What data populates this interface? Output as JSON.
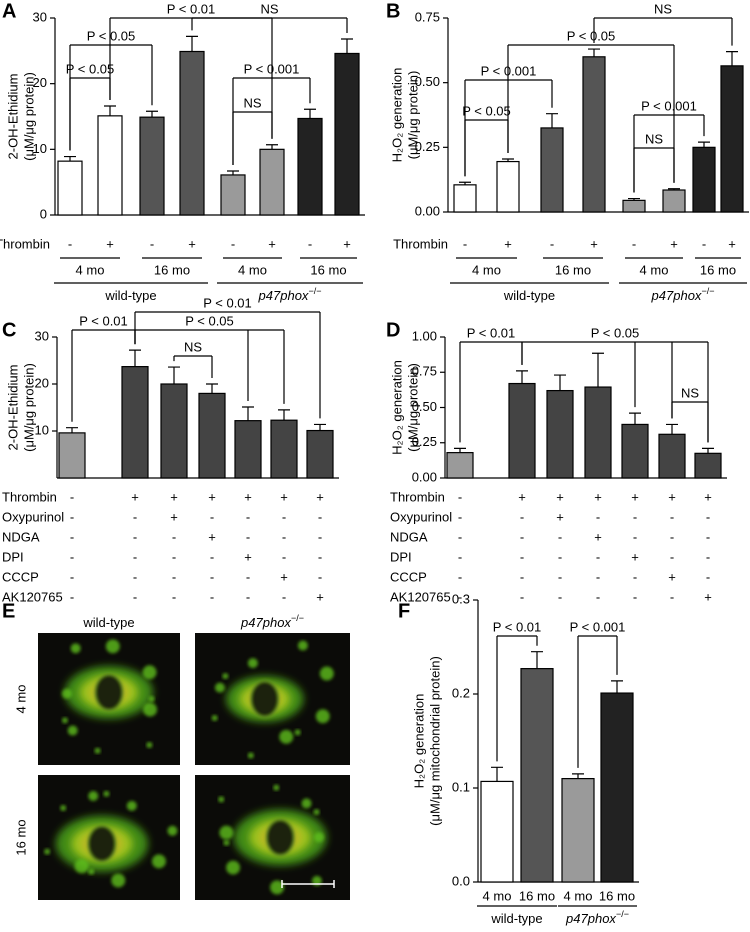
{
  "chart_data": [
    {
      "label": "A",
      "type": "bar",
      "ylabel": [
        "2-OH-Ethidium",
        "(μM/μg protein)"
      ],
      "ylim": [
        0,
        30
      ],
      "yticks": [
        0,
        10,
        20,
        30
      ],
      "values": [
        8.2,
        15.1,
        14.9,
        24.9,
        6.1,
        10.0,
        14.7,
        24.6
      ],
      "errors": [
        0.7,
        1.5,
        0.9,
        2.3,
        0.6,
        0.7,
        1.4,
        2.2
      ],
      "colors": [
        "#ffffff",
        "#ffffff",
        "#555555",
        "#555555",
        "#9a9a9a",
        "#9a9a9a",
        "#222222",
        "#222222"
      ],
      "rows": [
        {
          "name": "Thrombin",
          "values": [
            "-",
            "+",
            "-",
            "+",
            "-",
            "+",
            "-",
            "+"
          ]
        }
      ],
      "groups": [
        "4 mo",
        "16 mo",
        "4 mo",
        "16 mo"
      ],
      "genotypes": [
        {
          "name": "wild-type"
        },
        {
          "name": "p47phox",
          "superscript": "−/−"
        }
      ],
      "annotations": [
        "P < 0.05",
        "P < 0.05",
        "P < 0.01",
        "NS",
        "P < 0.001",
        "NS"
      ]
    },
    {
      "label": "B",
      "type": "bar",
      "ylabel": [
        "H₂O₂ generation",
        "(μM/μg protein)"
      ],
      "ylim": [
        0,
        0.75
      ],
      "yticks": [
        {
          "value": 0,
          "label": "0.00"
        },
        {
          "value": 0.25,
          "label": "0.25"
        },
        {
          "value": 0.5,
          "label": "0.50"
        },
        {
          "value": 0.75,
          "label": "0.75"
        }
      ],
      "values": [
        0.105,
        0.195,
        0.325,
        0.6,
        0.045,
        0.085,
        0.25,
        0.565
      ],
      "errors": [
        0.01,
        0.01,
        0.055,
        0.03,
        0.007,
        0.005,
        0.02,
        0.055
      ],
      "colors": [
        "#ffffff",
        "#ffffff",
        "#555555",
        "#555555",
        "#9a9a9a",
        "#9a9a9a",
        "#222222",
        "#222222"
      ],
      "rows": [
        {
          "name": "Thrombin",
          "values": [
            "-",
            "+",
            "-",
            "+",
            "-",
            "+",
            "-",
            "+"
          ]
        }
      ],
      "groups": [
        "4 mo",
        "16 mo",
        "4 mo",
        "16 mo"
      ],
      "genotypes": [
        {
          "name": "wild-type"
        },
        {
          "name": "p47phox",
          "superscript": "−/−"
        }
      ],
      "annotations": [
        "P < 0.05",
        "P < 0.001",
        "P < 0.05",
        "NS",
        "P < 0.001",
        "NS"
      ]
    },
    {
      "label": "C",
      "type": "bar",
      "ylabel": [
        "2-OH-Ethidium",
        "(μM/μg protein)"
      ],
      "ylim": [
        0,
        30
      ],
      "yticks": [
        10,
        20,
        30
      ],
      "values": [
        9.6,
        23.7,
        20.0,
        18.0,
        12.2,
        12.3,
        10.1
      ],
      "errors": [
        1.1,
        3.5,
        3.6,
        2.0,
        2.9,
        2.2,
        1.3
      ],
      "colors": [
        "#9a9a9a",
        "#444444",
        "#444444",
        "#444444",
        "#444444",
        "#444444",
        "#444444"
      ],
      "rows": [
        {
          "name": "Thrombin",
          "values": [
            "-",
            "+",
            "+",
            "+",
            "+",
            "+",
            "+"
          ]
        },
        {
          "name": "Oxypurinol",
          "values": [
            "-",
            "-",
            "+",
            "-",
            "-",
            "-",
            "-"
          ]
        },
        {
          "name": "NDGA",
          "values": [
            "-",
            "-",
            "-",
            "+",
            "-",
            "-",
            "-"
          ]
        },
        {
          "name": "DPI",
          "values": [
            "-",
            "-",
            "-",
            "-",
            "+",
            "-",
            "-"
          ]
        },
        {
          "name": "CCCP",
          "values": [
            "-",
            "-",
            "-",
            "-",
            "-",
            "+",
            "-"
          ]
        },
        {
          "name": "AK120765",
          "values": [
            "-",
            "-",
            "-",
            "-",
            "-",
            "-",
            "+"
          ]
        }
      ],
      "annotations": [
        "P < 0.01",
        "P < 0.01",
        "P < 0.05",
        "NS"
      ]
    },
    {
      "label": "D",
      "type": "bar",
      "ylabel": [
        "H₂O₂ generation",
        "(μM/μg protein)"
      ],
      "ylim": [
        0,
        1
      ],
      "yticks": [
        {
          "value": 0,
          "label": "0.00"
        },
        {
          "value": 0.25,
          "label": "0.25"
        },
        {
          "value": 0.5,
          "label": "0.50"
        },
        {
          "value": 0.75,
          "label": "0.75"
        },
        {
          "value": 1,
          "label": "1.00"
        }
      ],
      "values": [
        0.18,
        0.67,
        0.62,
        0.645,
        0.38,
        0.31,
        0.175
      ],
      "errors": [
        0.03,
        0.09,
        0.11,
        0.24,
        0.08,
        0.07,
        0.035
      ],
      "colors": [
        "#9a9a9a",
        "#444444",
        "#444444",
        "#444444",
        "#444444",
        "#444444",
        "#444444"
      ],
      "rows": [
        {
          "name": "Thrombin",
          "values": [
            "-",
            "+",
            "+",
            "+",
            "+",
            "+",
            "+"
          ]
        },
        {
          "name": "Oxypurinol",
          "values": [
            "-",
            "-",
            "+",
            "-",
            "-",
            "-",
            "-"
          ]
        },
        {
          "name": "NDGA",
          "values": [
            "-",
            "-",
            "-",
            "+",
            "-",
            "-",
            "-"
          ]
        },
        {
          "name": "DPI",
          "values": [
            "-",
            "-",
            "-",
            "-",
            "+",
            "-",
            "-"
          ]
        },
        {
          "name": "CCCP",
          "values": [
            "-",
            "-",
            "-",
            "-",
            "-",
            "+",
            "-"
          ]
        },
        {
          "name": "AK120765",
          "values": [
            "-",
            "-",
            "-",
            "-",
            "-",
            "-",
            "+"
          ]
        }
      ],
      "annotations": [
        "P < 0.01",
        "P < 0.05",
        "NS"
      ]
    },
    {
      "label": "F",
      "type": "bar",
      "ylabel": [
        "H₂O₂ generation",
        "(μM/μg mitochondrial protein)"
      ],
      "ylim": [
        0,
        0.3
      ],
      "yticks": [
        {
          "value": 0,
          "label": "0.0"
        },
        {
          "value": 0.1,
          "label": "0.1"
        },
        {
          "value": 0.2,
          "label": "0.2"
        },
        {
          "value": 0.3,
          "label": "0.3"
        }
      ],
      "values": [
        0.107,
        0.227,
        0.11,
        0.201
      ],
      "errors": [
        0.015,
        0.018,
        0.005,
        0.013
      ],
      "colors": [
        "#ffffff",
        "#555555",
        "#9a9a9a",
        "#222222"
      ],
      "groups": [
        "4 mo",
        "16 mo",
        "4 mo",
        "16 mo"
      ],
      "genotypes": [
        {
          "name": "wild-type"
        },
        {
          "name": "p47phox",
          "superscript": "−/−"
        }
      ],
      "annotations": [
        "P < 0.01",
        "P < 0.001"
      ]
    }
  ],
  "image_panel": {
    "label": "E",
    "columns": [
      {
        "name": "wild-type"
      },
      {
        "name": "p47phox",
        "superscript": "−/−"
      }
    ],
    "rows": [
      "4 mo",
      "16 mo"
    ]
  }
}
